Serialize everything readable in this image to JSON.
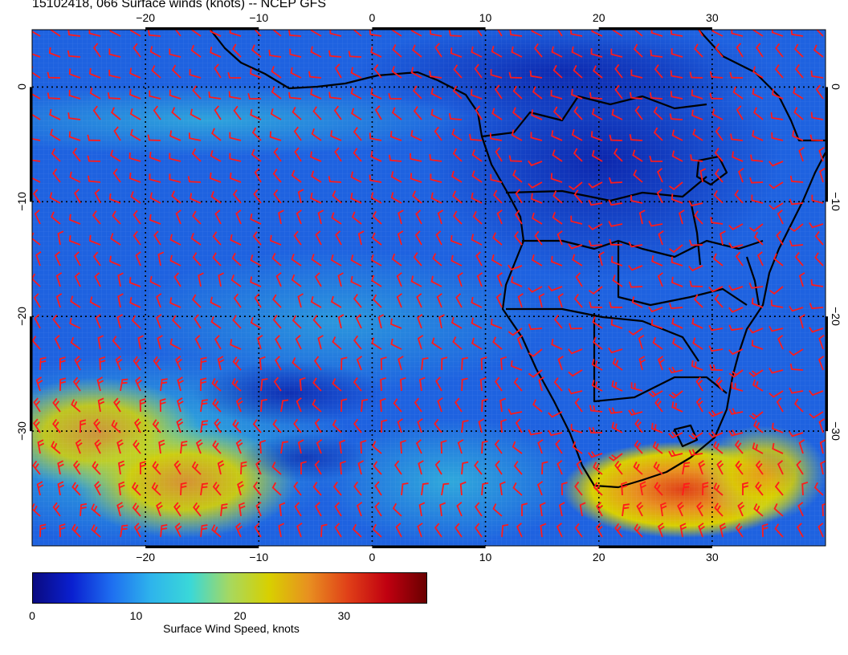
{
  "title": "15102418, 066 Surface winds (knots) -- NCEP GFS",
  "map": {
    "lon_range": [
      -30,
      40
    ],
    "lat_range": [
      -40,
      5
    ],
    "lon_ticks": [
      {
        "value": -20,
        "label": "−20"
      },
      {
        "value": -10,
        "label": "−10"
      },
      {
        "value": 0,
        "label": "0"
      },
      {
        "value": 10,
        "label": "10"
      },
      {
        "value": 20,
        "label": "20"
      },
      {
        "value": 30,
        "label": "30"
      }
    ],
    "lat_ticks": [
      {
        "value": 0,
        "label": "0"
      },
      {
        "value": -10,
        "label": "−10"
      },
      {
        "value": -20,
        "label": "−20"
      },
      {
        "value": -30,
        "label": "−30"
      }
    ],
    "barb_color": "#ff1a1a",
    "land_outline_color": "#000000"
  },
  "colorbar": {
    "min": 0,
    "max": 38,
    "ticks": [
      {
        "value": 0,
        "label": "0"
      },
      {
        "value": 10,
        "label": "10"
      },
      {
        "value": 20,
        "label": "20"
      },
      {
        "value": 30,
        "label": "30"
      }
    ],
    "label": "Surface Wind Speed, knots",
    "colors": [
      "#0a0a80",
      "#0a20d0",
      "#1e6ef0",
      "#2eb4ec",
      "#3ad8d8",
      "#a6d860",
      "#d8d000",
      "#e89020",
      "#e04018",
      "#c00010",
      "#6a0000"
    ]
  }
}
